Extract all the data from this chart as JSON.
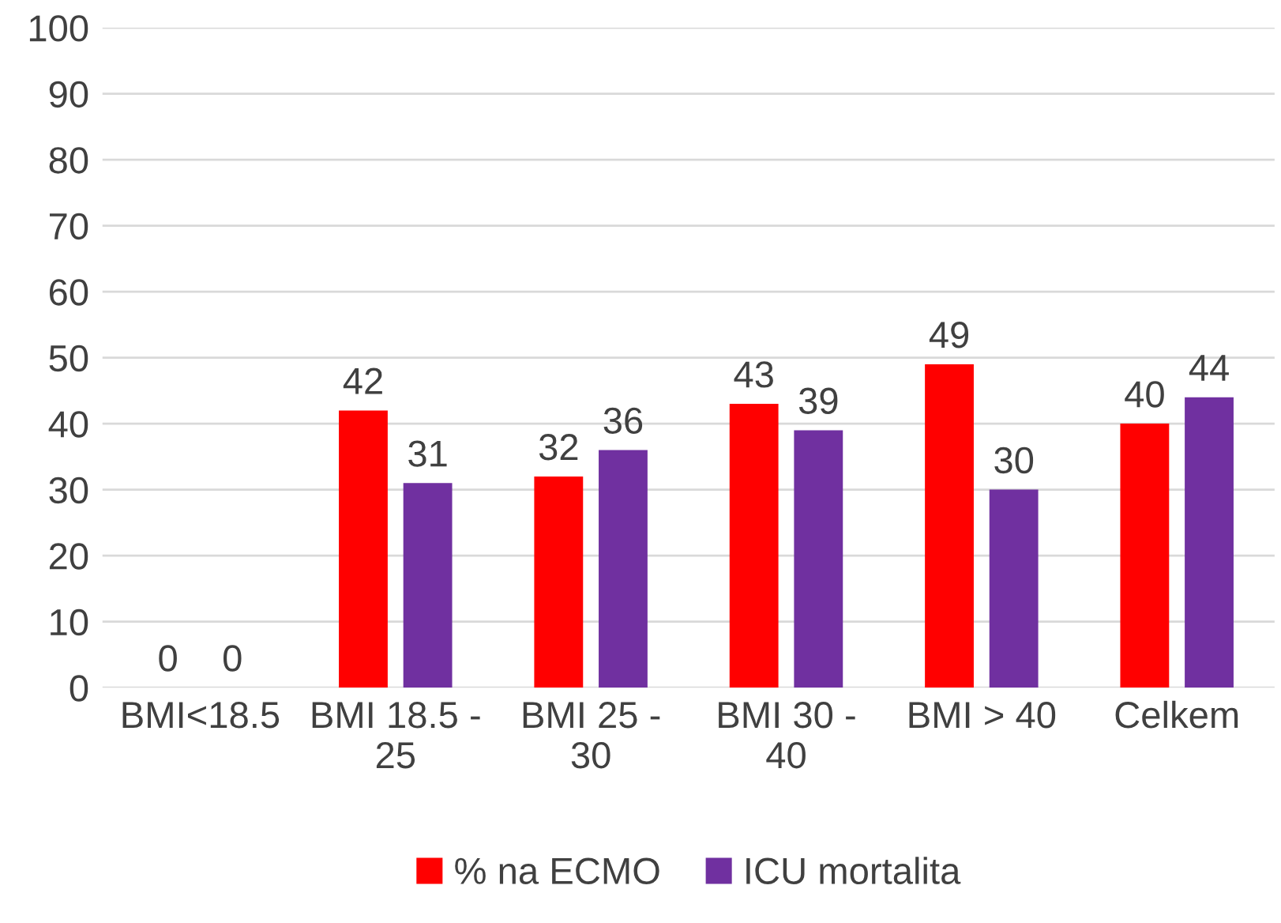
{
  "chart_data": {
    "type": "bar",
    "categories": [
      "BMI<18.5",
      "BMI 18.5 - 25",
      "BMI 25 - 30",
      "BMI 30 - 40",
      "BMI > 40",
      "Celkem"
    ],
    "series": [
      {
        "name": "% na ECMO",
        "color": "#ff0000",
        "values": [
          0,
          42,
          32,
          43,
          49,
          40
        ]
      },
      {
        "name": "ICU mortalita",
        "color": "#7030a0",
        "values": [
          0,
          31,
          36,
          39,
          30,
          44
        ]
      }
    ],
    "ylim": [
      0,
      100
    ],
    "yticks": [
      0,
      10,
      20,
      30,
      40,
      50,
      60,
      70,
      80,
      90,
      100
    ],
    "grid": "y",
    "legend": "bottom",
    "data_labels": true
  }
}
